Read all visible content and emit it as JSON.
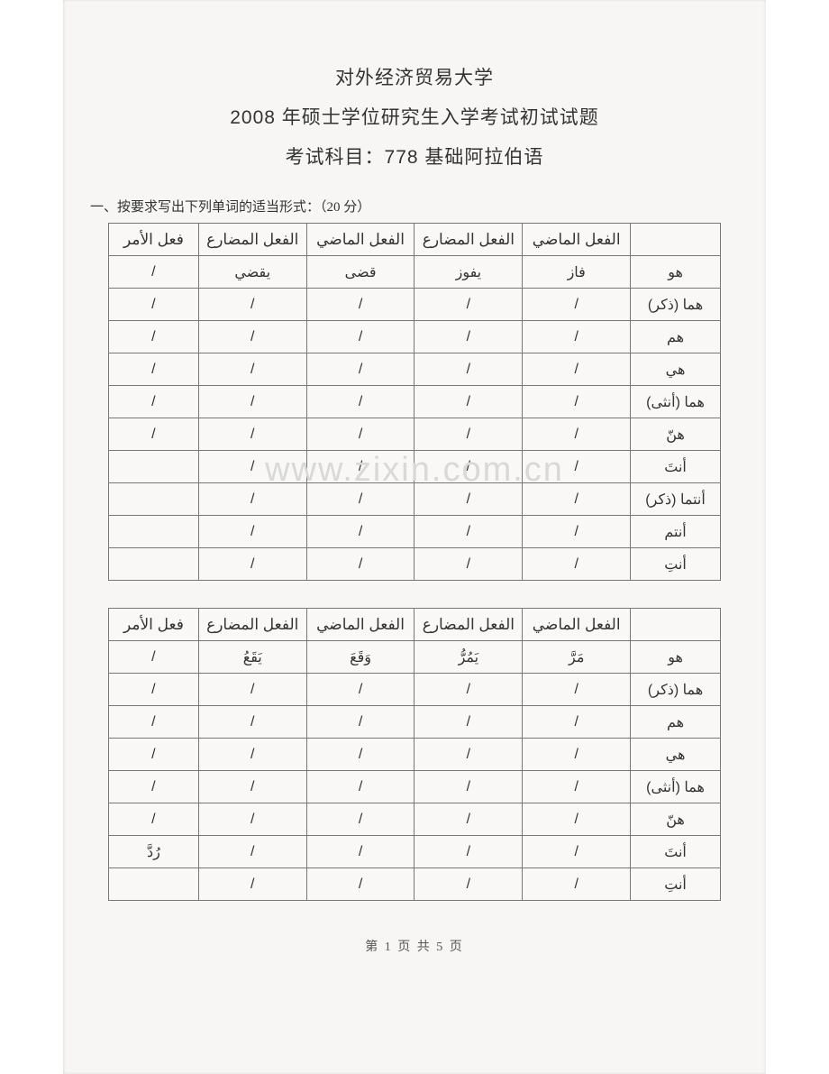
{
  "background_color": "#f7f6f4",
  "border_color": "#777777",
  "text_color": "#333333",
  "watermark_color": "#d8d8d8",
  "header": {
    "university": "对外经济贸易大学",
    "exam_title": "2008 年硕士学位研究生入学考试初试试题",
    "subject": "考试科目：778 基础阿拉伯语"
  },
  "section1": {
    "title": "一、按要求写出下列单词的适当形式：（20 分）"
  },
  "watermark": "www.zixin.com.cn",
  "footer": "第 1 页 共 5 页",
  "table1": {
    "headers": [
      "فعل الأمر",
      "الفعل المضارع",
      "الفعل الماضي",
      "الفعل المضارع",
      "الفعل الماضي",
      ""
    ],
    "rows": [
      [
        "/",
        "يقضي",
        "قضى",
        "يفوز",
        "فاز",
        "هو"
      ],
      [
        "/",
        "/",
        "/",
        "/",
        "/",
        "هما (ذكر)"
      ],
      [
        "/",
        "/",
        "/",
        "/",
        "/",
        "هم"
      ],
      [
        "/",
        "/",
        "/",
        "/",
        "/",
        "هي"
      ],
      [
        "/",
        "/",
        "/",
        "/",
        "/",
        "هما (أنثى)"
      ],
      [
        "/",
        "/",
        "/",
        "/",
        "/",
        "هنّ"
      ],
      [
        "",
        "/",
        "/",
        "/",
        "/",
        "أنتَ"
      ],
      [
        "",
        "/",
        "/",
        "/",
        "/",
        "أنتما (ذكر)"
      ],
      [
        "",
        "/",
        "/",
        "/",
        "/",
        "أنتم"
      ],
      [
        "",
        "/",
        "/",
        "/",
        "/",
        "أنتِ"
      ]
    ]
  },
  "table2": {
    "headers": [
      "فعل الأمر",
      "الفعل المضارع",
      "الفعل الماضي",
      "الفعل المضارع",
      "الفعل الماضي",
      ""
    ],
    "rows": [
      [
        "/",
        "يَقَعُ",
        "وَقَعَ",
        "يَمُرُّ",
        "مَرَّ",
        "هو"
      ],
      [
        "/",
        "/",
        "/",
        "/",
        "/",
        "هما (ذكر)"
      ],
      [
        "/",
        "/",
        "/",
        "/",
        "/",
        "هم"
      ],
      [
        "/",
        "/",
        "/",
        "/",
        "/",
        "هي"
      ],
      [
        "/",
        "/",
        "/",
        "/",
        "/",
        "هما (أنثى)"
      ],
      [
        "/",
        "/",
        "/",
        "/",
        "/",
        "هنّ"
      ],
      [
        "رُدَّ",
        "/",
        "/",
        "/",
        "/",
        "أنتَ"
      ],
      [
        "",
        "/",
        "/",
        "/",
        "/",
        "أنتِ"
      ]
    ]
  }
}
